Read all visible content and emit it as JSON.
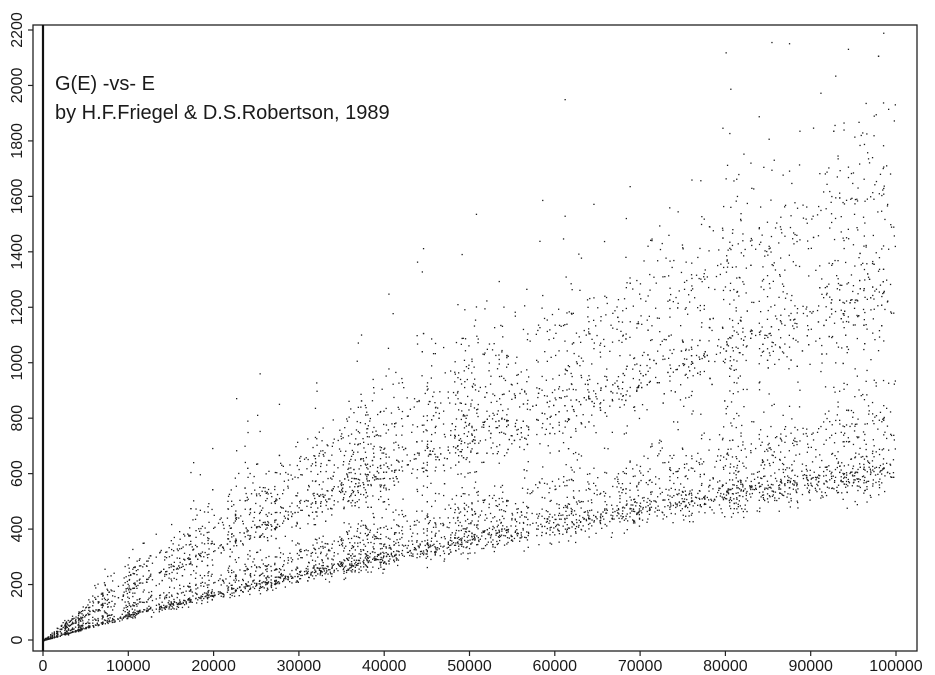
{
  "chart_data": {
    "type": "scatter",
    "title": "G(E) -vs- E",
    "subtitle": "by H.F.Friegel & D.S.Robertson, 1989",
    "xlabel": "",
    "ylabel": "",
    "xlim": [
      0,
      100000
    ],
    "ylim": [
      0,
      2200
    ],
    "x_ticks": [
      0,
      10000,
      20000,
      30000,
      40000,
      50000,
      60000,
      70000,
      80000,
      90000,
      100000
    ],
    "x_tick_labels": [
      "0",
      "10000",
      "20000",
      "30000",
      "40000",
      "50000",
      "60000",
      "70000",
      "80000",
      "90000",
      "100000"
    ],
    "y_ticks": [
      0,
      200,
      400,
      600,
      800,
      1000,
      1200,
      1400,
      1600,
      1800,
      2000,
      2200
    ],
    "y_tick_labels": [
      "0",
      "200",
      "400",
      "600",
      "800",
      "1000",
      "1200",
      "1400",
      "1600",
      "1800",
      "2000",
      "2200"
    ],
    "grid": false,
    "series": [
      {
        "x": [
          0,
          10000,
          20000,
          30000,
          40000,
          50000,
          60000,
          70000,
          80000,
          90000,
          100000
        ],
        "y": [
          0,
          90,
          165,
          235,
          300,
          365,
          420,
          475,
          525,
          570,
          610
        ]
      },
      {
        "x": [
          0,
          10000,
          20000,
          30000,
          40000,
          50000,
          60000,
          70000,
          80000,
          90000,
          100000
        ],
        "y": [
          0,
          120,
          215,
          300,
          380,
          455,
          525,
          590,
          655,
          715,
          780
        ]
      },
      {
        "x": [
          0,
          10000,
          20000,
          30000,
          40000,
          50000,
          60000,
          70000,
          80000,
          90000,
          100000
        ],
        "y": [
          0,
          180,
          330,
          470,
          600,
          720,
          835,
          945,
          1045,
          1145,
          1230
        ]
      },
      {
        "x": [
          0,
          10000,
          20000,
          30000,
          40000,
          50000,
          60000,
          70000,
          80000,
          90000,
          100000
        ],
        "y": [
          0,
          230,
          420,
          600,
          765,
          920,
          1065,
          1200,
          1330,
          1455,
          1580
        ]
      }
    ]
  }
}
